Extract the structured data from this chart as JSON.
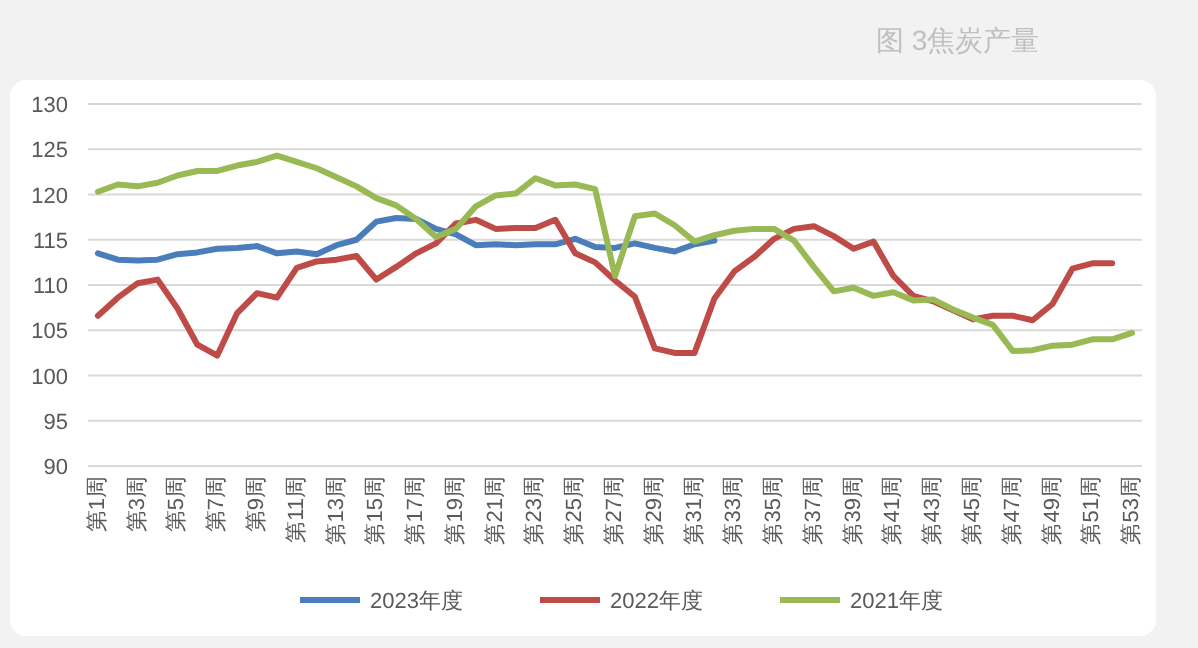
{
  "chart_data": {
    "type": "line",
    "title": "图 3焦炭产量",
    "categories": [
      "第1周",
      null,
      "第3周",
      null,
      "第5周",
      null,
      "第7周",
      null,
      "第9周",
      null,
      "第11周",
      null,
      "第13周",
      null,
      "第15周",
      null,
      "第17周",
      null,
      "第19周",
      null,
      "第21周",
      null,
      "第23周",
      null,
      "第25周",
      null,
      "第27周",
      null,
      "第29周",
      null,
      "第31周",
      null,
      "第33周",
      null,
      "第35周",
      null,
      "第37周",
      null,
      "第39周",
      null,
      "第41周",
      null,
      "第43周",
      null,
      "第45周",
      null,
      "第47周",
      null,
      "第49周",
      null,
      "第51周",
      null,
      "第53周"
    ],
    "series": [
      {
        "name": "2023年度",
        "color": "#4a7ebb",
        "values": [
          113.5,
          112.8,
          112.7,
          112.8,
          113.4,
          113.6,
          114.0,
          114.1,
          114.3,
          113.5,
          113.7,
          113.4,
          114.4,
          115.0,
          117.0,
          117.4,
          117.3,
          116.2,
          115.6,
          114.4,
          114.5,
          114.4,
          114.5,
          114.5,
          115.1,
          114.2,
          114.1,
          114.6,
          114.1,
          113.7,
          114.5,
          114.9,
          null,
          null,
          null,
          null,
          null,
          null,
          null,
          null,
          null,
          null,
          null,
          null,
          null,
          null,
          null,
          null,
          null,
          null,
          null,
          null,
          null
        ]
      },
      {
        "name": "2022年度",
        "color": "#be4b48",
        "values": [
          106.6,
          108.6,
          110.2,
          110.6,
          107.4,
          103.4,
          102.2,
          106.9,
          109.1,
          108.6,
          111.9,
          112.6,
          112.8,
          113.2,
          110.6,
          112.0,
          113.5,
          114.6,
          116.8,
          117.2,
          116.2,
          116.3,
          116.3,
          117.2,
          113.5,
          112.5,
          110.5,
          108.7,
          103.0,
          102.5,
          102.5,
          108.5,
          111.5,
          113.1,
          115.1,
          116.2,
          116.5,
          115.4,
          114.0,
          114.8,
          111.0,
          108.8,
          108.2,
          107.2,
          106.2,
          106.6,
          106.6,
          106.1,
          107.9,
          111.8,
          112.4,
          112.4,
          null
        ]
      },
      {
        "name": "2021年度",
        "color": "#98b954",
        "values": [
          120.3,
          121.1,
          120.9,
          121.3,
          122.1,
          122.6,
          122.6,
          123.2,
          123.6,
          124.3,
          123.6,
          122.9,
          121.9,
          120.9,
          119.6,
          118.8,
          117.3,
          115.3,
          116.2,
          118.7,
          119.9,
          120.1,
          121.8,
          121.0,
          121.1,
          120.6,
          111.0,
          117.6,
          117.9,
          116.6,
          114.8,
          115.5,
          116.0,
          116.2,
          116.2,
          114.9,
          112.0,
          109.3,
          109.7,
          108.8,
          109.2,
          108.3,
          108.4,
          107.3,
          106.4,
          105.6,
          102.7,
          102.8,
          103.3,
          103.4,
          104.0,
          104.0,
          104.7
        ]
      }
    ],
    "ylim": [
      90,
      130
    ],
    "yticks": [
      90,
      95,
      100,
      105,
      110,
      115,
      120,
      125,
      130
    ],
    "grid": "y",
    "legend": "bottom"
  }
}
